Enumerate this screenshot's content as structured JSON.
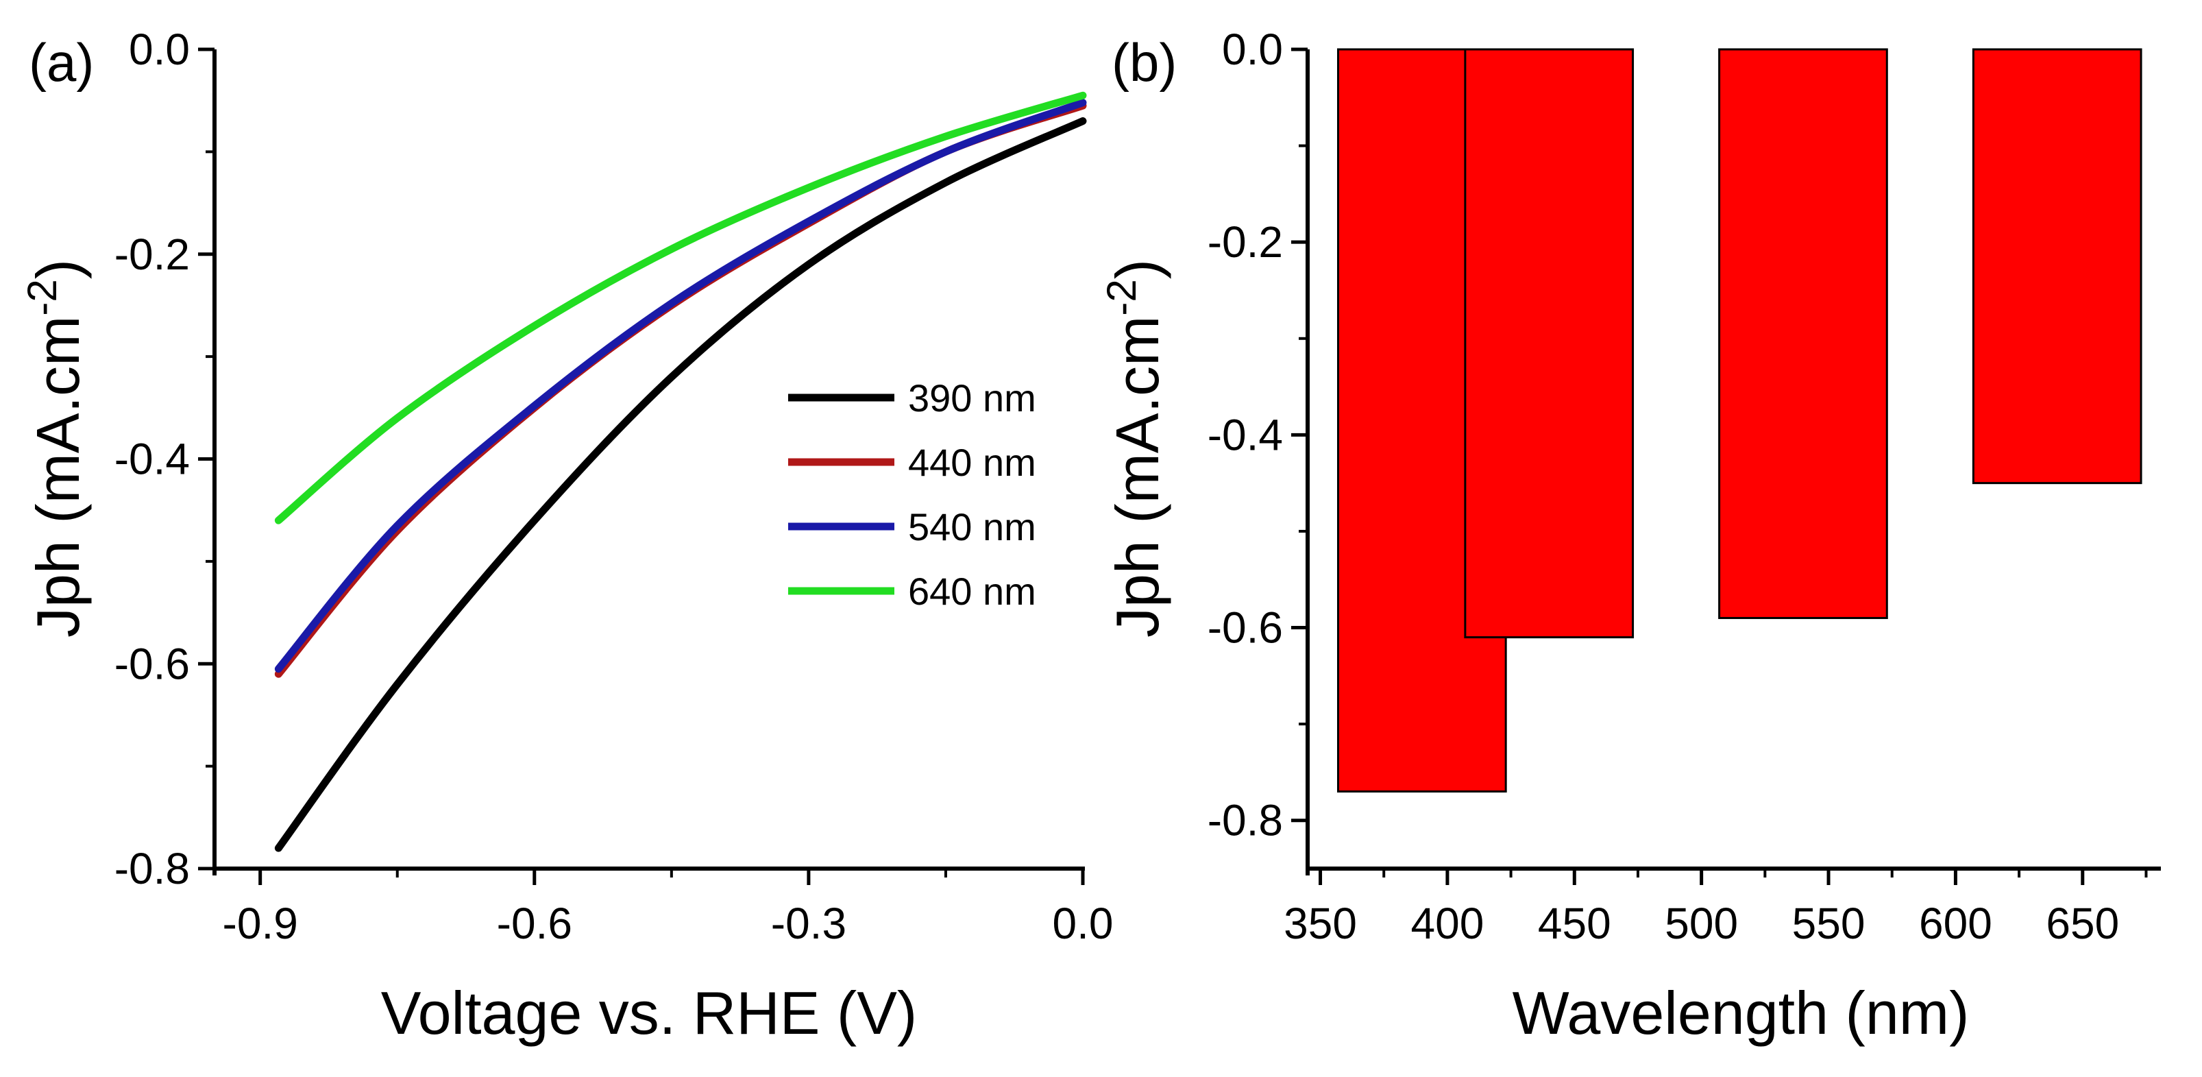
{
  "chart_data": [
    {
      "type": "line",
      "panel_label": "(a)",
      "xlabel": "Voltage vs. RHE (V)",
      "ylabel": "Jph (mA.cm-2)",
      "ylabel_parts": {
        "main": "Jph",
        "unit": "(mA.cm",
        "exp": "-2",
        "close": ")"
      },
      "xlim": [
        -0.95,
        0.0
      ],
      "ylim": [
        -0.8,
        0.0
      ],
      "xticks": [
        "-0.9",
        "-0.6",
        "-0.3",
        "0.0"
      ],
      "yticks": [
        "0.0",
        "-0.2",
        "-0.4",
        "-0.6",
        "-0.8"
      ],
      "legend_position": "center-right",
      "series": [
        {
          "name": "390 nm",
          "color": "#000000",
          "x": [
            -0.88,
            -0.75,
            -0.6,
            -0.45,
            -0.3,
            -0.15,
            0.0
          ],
          "y": [
            -0.78,
            -0.62,
            -0.46,
            -0.32,
            -0.21,
            -0.13,
            -0.07
          ]
        },
        {
          "name": "440 nm",
          "color": "#b01818",
          "x": [
            -0.88,
            -0.75,
            -0.6,
            -0.45,
            -0.3,
            -0.15,
            0.0
          ],
          "y": [
            -0.61,
            -0.47,
            -0.35,
            -0.25,
            -0.17,
            -0.1,
            -0.055
          ]
        },
        {
          "name": "540 nm",
          "color": "#1a1aa8",
          "x": [
            -0.88,
            -0.75,
            -0.6,
            -0.45,
            -0.3,
            -0.15,
            0.0
          ],
          "y": [
            -0.605,
            -0.465,
            -0.348,
            -0.248,
            -0.168,
            -0.1,
            -0.052
          ]
        },
        {
          "name": "640 nm",
          "color": "#22dd22",
          "x": [
            -0.88,
            -0.75,
            -0.6,
            -0.45,
            -0.3,
            -0.15,
            0.0
          ],
          "y": [
            -0.46,
            -0.36,
            -0.27,
            -0.195,
            -0.135,
            -0.085,
            -0.045
          ]
        }
      ]
    },
    {
      "type": "bar",
      "panel_label": "(b)",
      "xlabel": "Wavelength (nm)",
      "ylabel": "Jph (mA.cm-2)",
      "ylabel_parts": {
        "main": "Jph",
        "unit": "(mA.cm",
        "exp": "-2",
        "close": ")"
      },
      "xlim": [
        345,
        680
      ],
      "ylim": [
        -0.85,
        0.0
      ],
      "xticks": [
        "350",
        "400",
        "450",
        "500",
        "550",
        "600",
        "650"
      ],
      "yticks": [
        "0.0",
        "-0.2",
        "-0.4",
        "-0.6",
        "-0.8"
      ],
      "bar_color": "#ff0000",
      "bars": [
        {
          "category": "390 nm",
          "x_start": 357,
          "x_end": 423,
          "value": -0.77
        },
        {
          "category": "440 nm",
          "x_start": 407,
          "x_end": 473,
          "value": -0.61
        },
        {
          "category": "540 nm",
          "x_start": 507,
          "x_end": 573,
          "value": -0.59
        },
        {
          "category": "640 nm",
          "x_start": 607,
          "x_end": 673,
          "value": -0.45
        }
      ]
    }
  ]
}
